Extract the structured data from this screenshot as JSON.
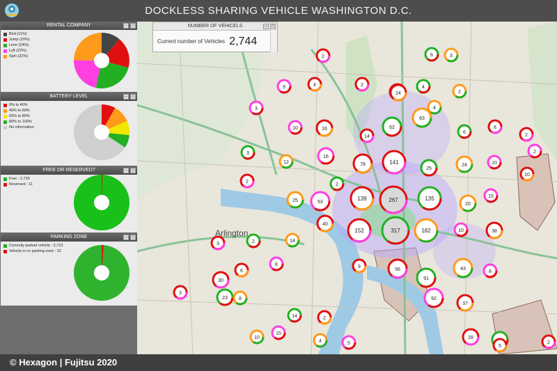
{
  "header": {
    "title": "DOCKLESS SHARING VEHICLE WASHINGTON D.C."
  },
  "colors": {
    "green": "#22b022",
    "red": "#e01010",
    "orange": "#ff9a1a",
    "magenta": "#ff3fe0",
    "yellow": "#f0e800",
    "dark": "#444444",
    "grey": "#cccccc"
  },
  "panels": {
    "rental": {
      "title": "RENTAL COMPANY",
      "items": [
        {
          "label": "Bird (11%)",
          "color": "#444444"
        },
        {
          "label": "Jump (20%)",
          "color": "#e01010"
        },
        {
          "label": "Lime (24%)",
          "color": "#22b022"
        },
        {
          "label": "Lyft (22%)",
          "color": "#ff3fe0"
        },
        {
          "label": "Spin (22%)",
          "color": "#ff9a1a"
        }
      ]
    },
    "battery": {
      "title": "BATTERY LEVEL",
      "items": [
        {
          "label": "0% to 40%",
          "color": "#e01010"
        },
        {
          "label": "40% to 60%",
          "color": "#ff9a1a"
        },
        {
          "label": "60% to 80%",
          "color": "#f0e800"
        },
        {
          "label": "80% to 100%",
          "color": "#22b022"
        },
        {
          "label": "No information",
          "color": "#cccccc"
        }
      ]
    },
    "free": {
      "title": "FREE OR RESERVED?",
      "items": [
        {
          "label": "Free : 2,733",
          "color": "#22b022"
        },
        {
          "label": "Reserved : 11",
          "color": "#e01010"
        }
      ]
    },
    "parking": {
      "title": "PARKING ZONE",
      "items": [
        {
          "label": "Correctly parked vehicle : 2,713",
          "color": "#22b022"
        },
        {
          "label": "Vehicle in no parking zone : 31",
          "color": "#e01010"
        }
      ]
    }
  },
  "vehicles_panel": {
    "title": "NUMBER OF VEHICELS",
    "label": "Current number of Vehicles",
    "count": "2,744"
  },
  "map": {
    "city_label": "Arlington",
    "clusters": [
      "2",
      "6",
      "3",
      "9",
      "4",
      "2",
      "4",
      "2",
      "3",
      "24",
      "2",
      "6",
      "4",
      "10",
      "16",
      "14",
      "62",
      "63",
      "2",
      "24",
      "8",
      "3",
      "12",
      "16",
      "78",
      "141",
      "25",
      "24",
      "10",
      "10",
      "2",
      "2",
      "25",
      "53",
      "139",
      "267",
      "135",
      "20",
      "15",
      "40",
      "152",
      "317",
      "182",
      "10",
      "38",
      "3",
      "2",
      "14",
      "8",
      "9",
      "56",
      "91",
      "43",
      "8",
      "6",
      "30",
      "23",
      "8",
      "92",
      "37",
      "3",
      "14",
      "10",
      "15",
      "2",
      "28",
      "28",
      "4",
      "5",
      "5",
      "2",
      "2"
    ]
  },
  "footer": {
    "text": "© Hexagon | Fujitsu 2020"
  }
}
